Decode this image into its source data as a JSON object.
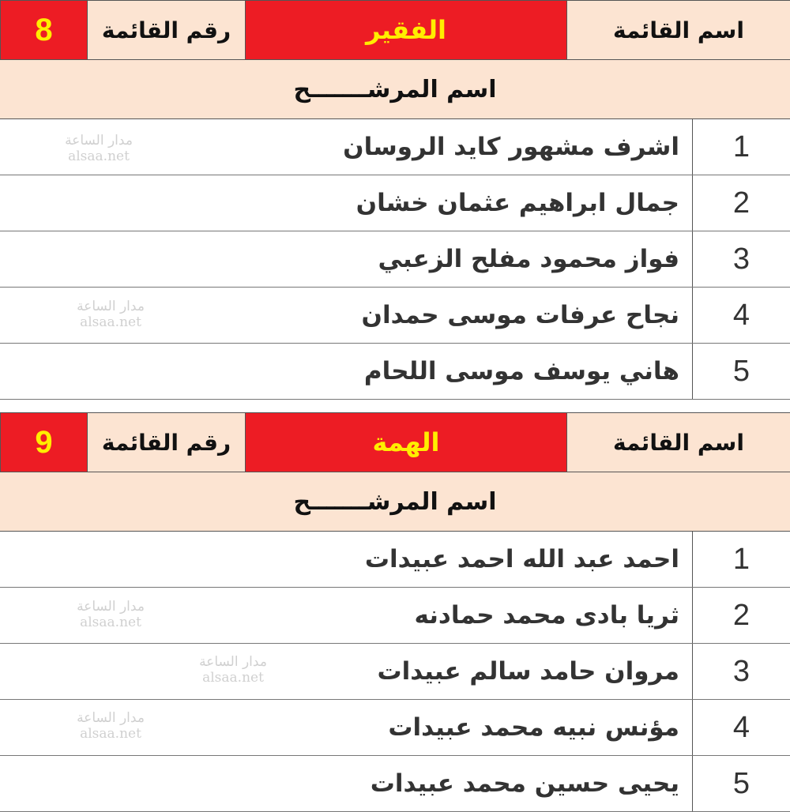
{
  "labels": {
    "list_name": "اسم القائمة",
    "list_number": "رقم القائمة",
    "candidate_name": "اسم المرشـــــــح"
  },
  "colors": {
    "accent_red": "#ed1c24",
    "highlight_yellow": "#ffee00",
    "header_beige": "#fce4d2"
  },
  "watermark": {
    "line1": "مدار الساعة",
    "line2": "alsaa.net"
  },
  "lists": [
    {
      "name": "الفقير",
      "number": "8",
      "candidates": [
        {
          "no": "1",
          "name": "اشرف مشهور كايد الروسان"
        },
        {
          "no": "2",
          "name": "جمال ابراهيم عثمان خشان"
        },
        {
          "no": "3",
          "name": "فواز محمود مفلح الزعبي"
        },
        {
          "no": "4",
          "name": "نجاح عرفات موسى حمدان"
        },
        {
          "no": "5",
          "name": "هاني يوسف موسى اللحام"
        }
      ]
    },
    {
      "name": "الهمة",
      "number": "9",
      "candidates": [
        {
          "no": "1",
          "name": "احمد عبد الله احمد عبيدات"
        },
        {
          "no": "2",
          "name": "ثريا بادى محمد حمادنه"
        },
        {
          "no": "3",
          "name": "مروان حامد سالم عبيدات"
        },
        {
          "no": "4",
          "name": "مؤنس نبيه محمد عبيدات"
        },
        {
          "no": "5",
          "name": "يحيى حسين محمد عبيدات"
        }
      ]
    }
  ]
}
